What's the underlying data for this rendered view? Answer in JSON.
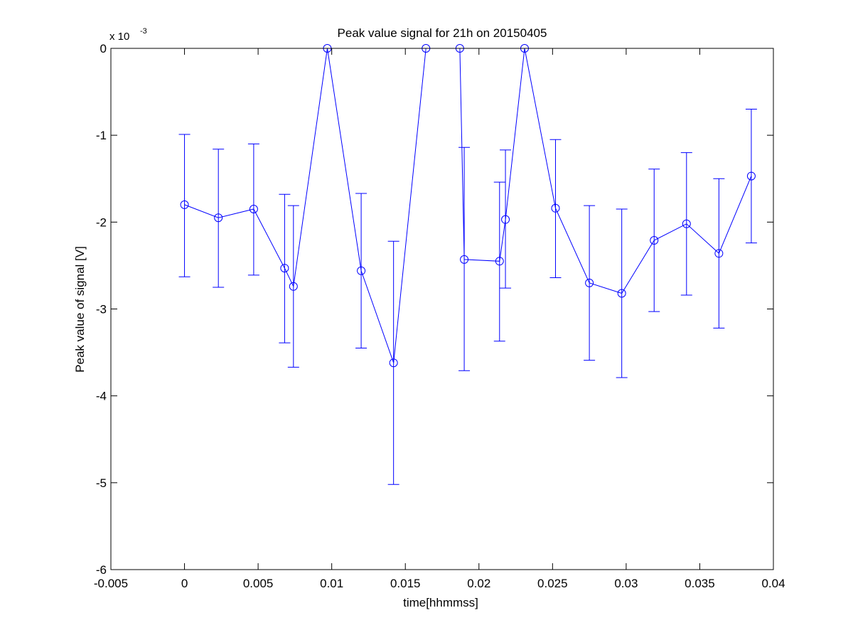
{
  "chart_data": {
    "type": "line",
    "title": "Peak value signal for 21h on 20150405",
    "xlabel": "time[hhmmss]",
    "ylabel": "Peak value of signal [V]",
    "y_exponent_label": "x 10",
    "y_exponent_power": "-3",
    "xlim": [
      -0.005,
      0.04
    ],
    "ylim": [
      -0.006,
      0
    ],
    "x_ticks": [
      -0.005,
      0,
      0.005,
      0.01,
      0.015,
      0.02,
      0.025,
      0.03,
      0.035,
      0.04
    ],
    "x_tick_labels": [
      "-0.005",
      "0",
      "0.005",
      "0.01",
      "0.015",
      "0.02",
      "0.025",
      "0.03",
      "0.035",
      "0.04"
    ],
    "y_ticks": [
      0,
      -0.001,
      -0.002,
      -0.003,
      -0.004,
      -0.005,
      -0.006
    ],
    "y_tick_labels": [
      "0",
      "-1",
      "-2",
      "-3",
      "-4",
      "-5",
      "-6"
    ],
    "grid": false,
    "line_color": "#0000ff",
    "marker": "circle",
    "segments": [
      [
        {
          "x": 0.0,
          "y": -0.0018,
          "err_low": -0.00263,
          "err_high": -0.00099
        },
        {
          "x": 0.0023,
          "y": -0.00195,
          "err_low": -0.00275,
          "err_high": -0.00116
        },
        {
          "x": 0.0047,
          "y": -0.00185,
          "err_low": -0.00261,
          "err_high": -0.0011
        },
        {
          "x": 0.0068,
          "y": -0.00253,
          "err_low": -0.00339,
          "err_high": -0.00168
        },
        {
          "x": 0.0074,
          "y": -0.00274,
          "err_low": -0.00367,
          "err_high": -0.00181
        },
        {
          "x": 0.0097,
          "y": 0.0
        },
        {
          "x": 0.012,
          "y": -0.00256,
          "err_low": -0.00345,
          "err_high": -0.00167
        },
        {
          "x": 0.0142,
          "y": -0.00362,
          "err_low": -0.00502,
          "err_high": -0.00222
        },
        {
          "x": 0.0164,
          "y": 0.0
        }
      ],
      [
        {
          "x": 0.0187,
          "y": 0.0
        },
        {
          "x": 0.019,
          "y": -0.00243,
          "err_low": -0.00371,
          "err_high": -0.00114
        },
        {
          "x": 0.0214,
          "y": -0.00245,
          "err_low": -0.00337,
          "err_high": -0.00154
        },
        {
          "x": 0.0218,
          "y": -0.00197,
          "err_low": -0.00276,
          "err_high": -0.00117
        },
        {
          "x": 0.0231,
          "y": 0.0
        },
        {
          "x": 0.0252,
          "y": -0.00184,
          "err_low": -0.00264,
          "err_high": -0.00105
        },
        {
          "x": 0.0275,
          "y": -0.0027,
          "err_low": -0.00359,
          "err_high": -0.00181
        },
        {
          "x": 0.0297,
          "y": -0.00282,
          "err_low": -0.00379,
          "err_high": -0.00185
        },
        {
          "x": 0.0319,
          "y": -0.00221,
          "err_low": -0.00303,
          "err_high": -0.00139
        },
        {
          "x": 0.0341,
          "y": -0.00202,
          "err_low": -0.00284,
          "err_high": -0.0012
        },
        {
          "x": 0.0363,
          "y": -0.00236,
          "err_low": -0.00322,
          "err_high": -0.0015
        },
        {
          "x": 0.0385,
          "y": -0.00147,
          "err_low": -0.00224,
          "err_high": -0.0007
        }
      ]
    ]
  }
}
